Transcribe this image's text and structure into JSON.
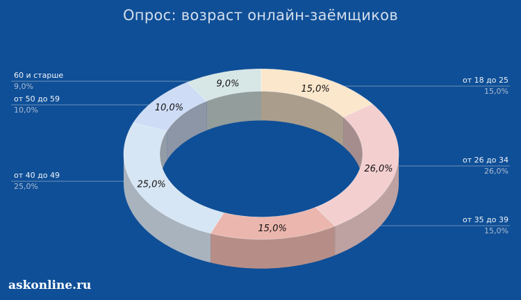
{
  "chart_data": {
    "type": "pie",
    "title": "Опрос: возраст онлайн-заёмщиков",
    "categories": [
      "от 18 до 25",
      "от 26 до 34",
      "от 35 до 39",
      "от 40 до 49",
      "от 50 до 59",
      "60 и старше"
    ],
    "values": [
      15.0,
      26.0,
      15.0,
      25.0,
      10.0,
      9.0
    ],
    "slice_labels": [
      "15,0%",
      "26,0%",
      "15,0%",
      "25,0%",
      "10,0%",
      "9,0%"
    ],
    "legend_percent": [
      "15,0%",
      "26,0%",
      "15,0%",
      "25,0%",
      "10,0%",
      "9,0%"
    ],
    "colors": [
      "#fbe7cc",
      "#f4cfcf",
      "#ebb6ad",
      "#d7e6f4",
      "#cfdcf6",
      "#d7e7e6"
    ],
    "style": "3d-donut"
  },
  "watermark": "askonline.ru"
}
